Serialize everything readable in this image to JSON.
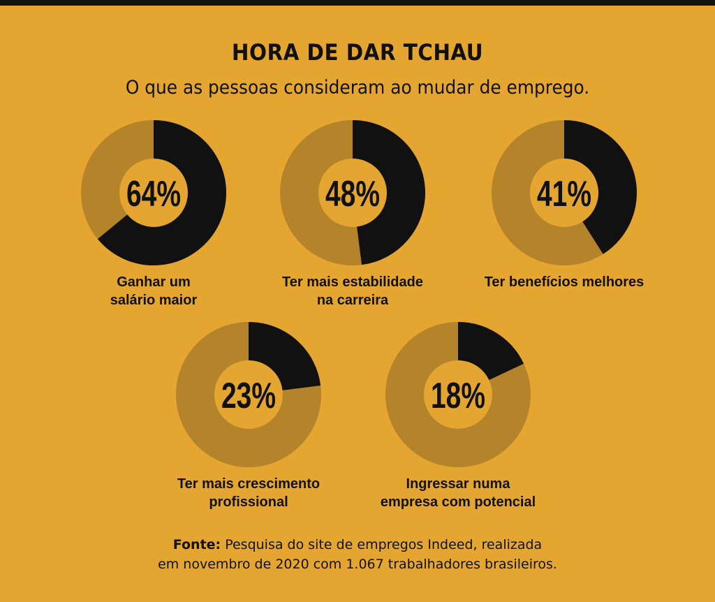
{
  "title": "HORA DE DAR TCHAU",
  "subtitle": "O que as pessoas consideram ao mudar de emprego.",
  "source": {
    "label": "Fonte:",
    "line1": "Pesquisa do site de empregos Indeed, realizada",
    "line2": "em novembro de 2020 com 1.067 trabalhadores brasileiros."
  },
  "colors": {
    "background": "#e4a531",
    "filled": "#111111",
    "remaining": "#b5842a",
    "text": "#111111"
  },
  "chart_data": {
    "type": "pie",
    "variant": "donut",
    "title": "HORA DE DAR TCHAU",
    "subtitle": "O que as pessoas consideram ao mudar de emprego.",
    "unit": "%",
    "items": [
      {
        "value": 64,
        "display": "64%",
        "label": [
          "Ganhar um",
          "salário maior"
        ]
      },
      {
        "value": 48,
        "display": "48%",
        "label": [
          "Ter mais estabilidade",
          "na carreira"
        ]
      },
      {
        "value": 41,
        "display": "41%",
        "label": [
          "Ter benefícios melhores"
        ]
      },
      {
        "value": 23,
        "display": "23%",
        "label": [
          "Ter mais crescimento",
          "profissional"
        ]
      },
      {
        "value": 18,
        "display": "18%",
        "label": [
          "Ingressar numa",
          "empresa com potencial"
        ]
      }
    ]
  }
}
